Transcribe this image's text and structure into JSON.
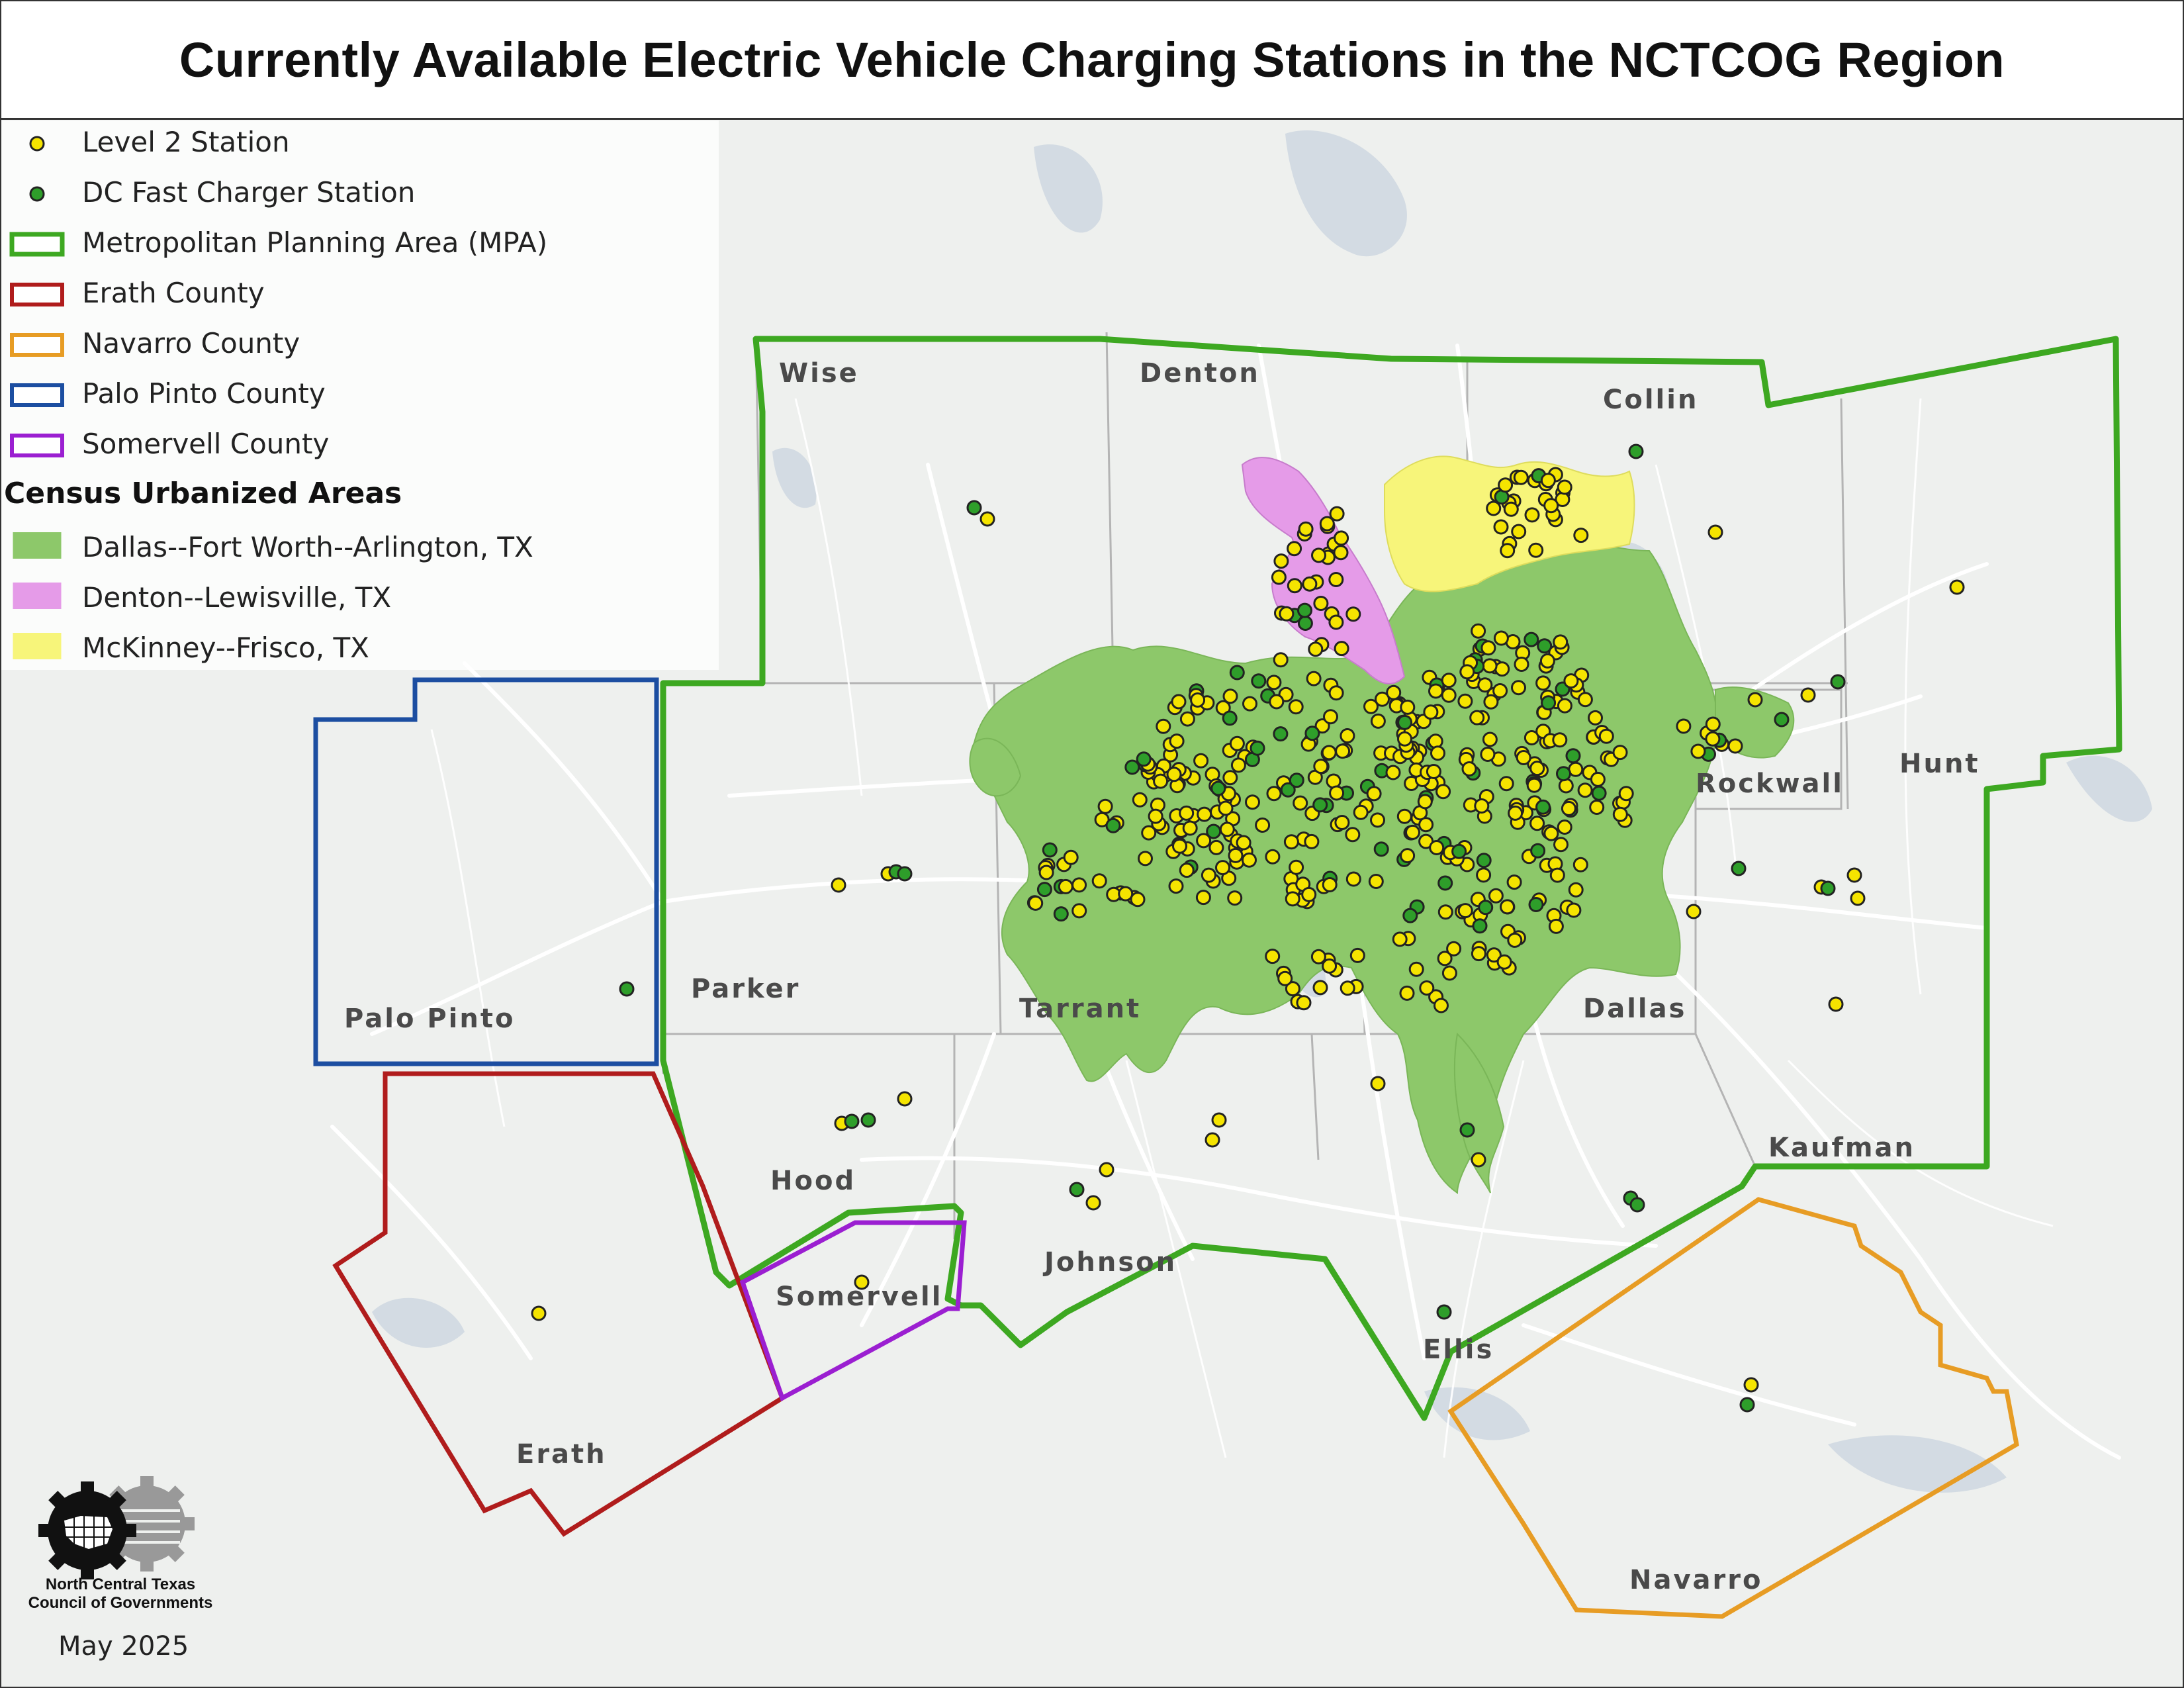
{
  "title": "Currently Available Electric Vehicle Charging Stations in the NCTCOG Region",
  "legend": {
    "items": [
      {
        "label": "Level 2 Station",
        "symbol": "point",
        "color": "#f5e400"
      },
      {
        "label": "DC Fast Charger Station",
        "symbol": "point",
        "color": "#2e9e2a"
      },
      {
        "label": "Metropolitan Planning Area (MPA)",
        "symbol": "outline",
        "color": "#3da821"
      },
      {
        "label": "Erath County",
        "symbol": "outline",
        "color": "#b01c1c"
      },
      {
        "label": "Navarro County",
        "symbol": "outline",
        "color": "#e79c24"
      },
      {
        "label": "Palo Pinto County",
        "symbol": "outline",
        "color": "#1c4ea1"
      },
      {
        "label": "Somervell County",
        "symbol": "outline",
        "color": "#9b1fd1"
      }
    ],
    "urbanized_heading": "Census Urbanized Areas",
    "urbanized": [
      {
        "label": "Dallas--Fort Worth--Arlington, TX",
        "color": "#8dc86a"
      },
      {
        "label": "Denton--Lewisville, TX",
        "color": "#e59be8"
      },
      {
        "label": "McKinney--Frisco, TX",
        "color": "#f7f57a"
      }
    ]
  },
  "counties": [
    "Wise",
    "Denton",
    "Collin",
    "Rockwall",
    "Hunt",
    "Palo Pinto",
    "Parker",
    "Tarrant",
    "Dallas",
    "Kaufman",
    "Hood",
    "Somervell",
    "Johnson",
    "Ellis",
    "Erath",
    "Navarro"
  ],
  "logo": {
    "name_line1": "North Central Texas",
    "name_line2": "Council of Governments"
  },
  "date": "May 2025"
}
